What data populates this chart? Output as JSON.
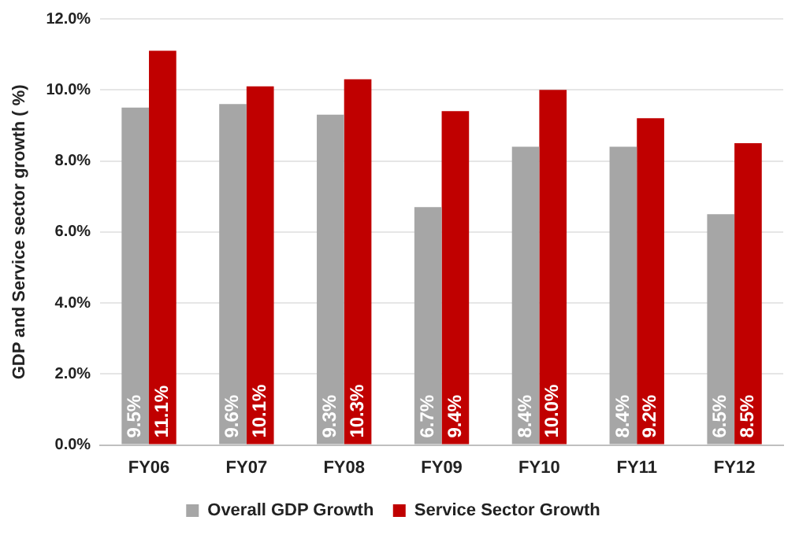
{
  "chart_data": {
    "type": "bar",
    "ylabel": "GDP and Service sector growth ( %)",
    "categories": [
      "FY06",
      "FY07",
      "FY08",
      "FY09",
      "FY10",
      "FY11",
      "FY12"
    ],
    "series": [
      {
        "name": "Overall GDP Growth",
        "color": "#a6a6a6",
        "values": [
          9.5,
          9.6,
          9.3,
          6.7,
          8.4,
          8.4,
          6.5
        ],
        "value_labels": [
          "9.5%",
          "9.6%",
          "9.3%",
          "6.7%",
          "8.4%",
          "8.4%",
          "6.5%"
        ]
      },
      {
        "name": "Service Sector Growth",
        "color": "#c00000",
        "values": [
          11.1,
          10.1,
          10.3,
          9.4,
          10.0,
          9.2,
          8.5
        ],
        "value_labels": [
          "11.1%",
          "10.1%",
          "10.3%",
          "9.4%",
          "10.0%",
          "9.2%",
          "8.5%"
        ]
      }
    ],
    "ylim": [
      0,
      12
    ],
    "yticks": [
      {
        "value": 0,
        "label": "0.0%"
      },
      {
        "value": 2,
        "label": "2.0%"
      },
      {
        "value": 4,
        "label": "4.0%"
      },
      {
        "value": 6,
        "label": "6.0%"
      },
      {
        "value": 8,
        "label": "8.0%"
      },
      {
        "value": 10,
        "label": "10.0%"
      },
      {
        "value": 12,
        "label": "12.0%"
      }
    ],
    "grid": "y",
    "legend": "bottom"
  }
}
